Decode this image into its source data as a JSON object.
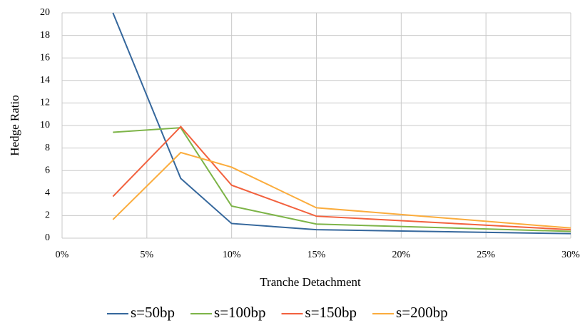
{
  "chart_data": {
    "type": "line",
    "x_label": "Tranche Detachment",
    "y_label": "Hedge Ratio",
    "x": [
      3,
      7,
      10,
      15,
      30
    ],
    "series": [
      {
        "name": "s=50bp",
        "color": "#35679c",
        "values": [
          20,
          5.3,
          1.3,
          0.75,
          0.4
        ]
      },
      {
        "name": "s=100bp",
        "color": "#7db448",
        "values": [
          9.4,
          9.8,
          2.85,
          1.25,
          0.6
        ]
      },
      {
        "name": "s=150bp",
        "color": "#f2613e",
        "values": [
          3.7,
          9.9,
          4.7,
          1.95,
          0.75
        ]
      },
      {
        "name": "s=200bp",
        "color": "#fbac3c",
        "values": [
          1.65,
          7.6,
          6.3,
          2.7,
          0.9
        ]
      }
    ],
    "xlim": [
      0,
      30
    ],
    "xticks": [
      {
        "value": 0,
        "label": "0%"
      },
      {
        "value": 5,
        "label": "5%"
      },
      {
        "value": 10,
        "label": "10%"
      },
      {
        "value": 15,
        "label": "15%"
      },
      {
        "value": 20,
        "label": "20%"
      },
      {
        "value": 25,
        "label": "25%"
      },
      {
        "value": 30,
        "label": "30%"
      }
    ],
    "ylim": [
      0,
      20
    ],
    "yticks": [
      0,
      2,
      4,
      6,
      8,
      10,
      12,
      14,
      16,
      18,
      20
    ],
    "grid": true,
    "legend": "bottom"
  }
}
